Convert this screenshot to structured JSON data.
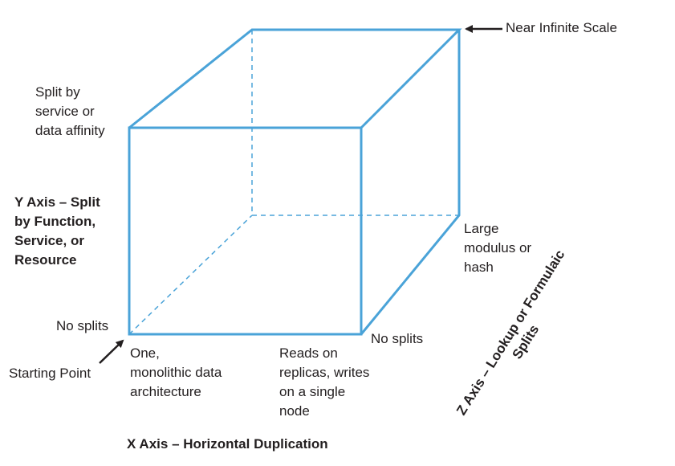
{
  "colors": {
    "cube_edge": "#4aa3d8",
    "text": "#231f20",
    "arrow": "#231f20"
  },
  "labels": {
    "near_infinite_scale": "Near Infinite Scale",
    "split_by_service": [
      "Split by",
      "service or",
      "data affinity"
    ],
    "y_axis_title": [
      "Y Axis – Split",
      "by Function,",
      "Service, or",
      "Resource"
    ],
    "no_splits_y": "No splits",
    "starting_point": "Starting Point",
    "one_monolithic": [
      "One,",
      "monolithic data",
      "architecture"
    ],
    "reads_on_replicas": [
      "Reads on",
      "replicas, writes",
      "on a single",
      "node"
    ],
    "no_splits_x": "No splits",
    "large_modulus": [
      "Large",
      "modulus or",
      "hash"
    ],
    "z_axis_title": [
      "Z Axis – Lookup or Formulaic",
      "Splits"
    ],
    "x_axis_title": "X Axis – Horizontal Duplication"
  }
}
